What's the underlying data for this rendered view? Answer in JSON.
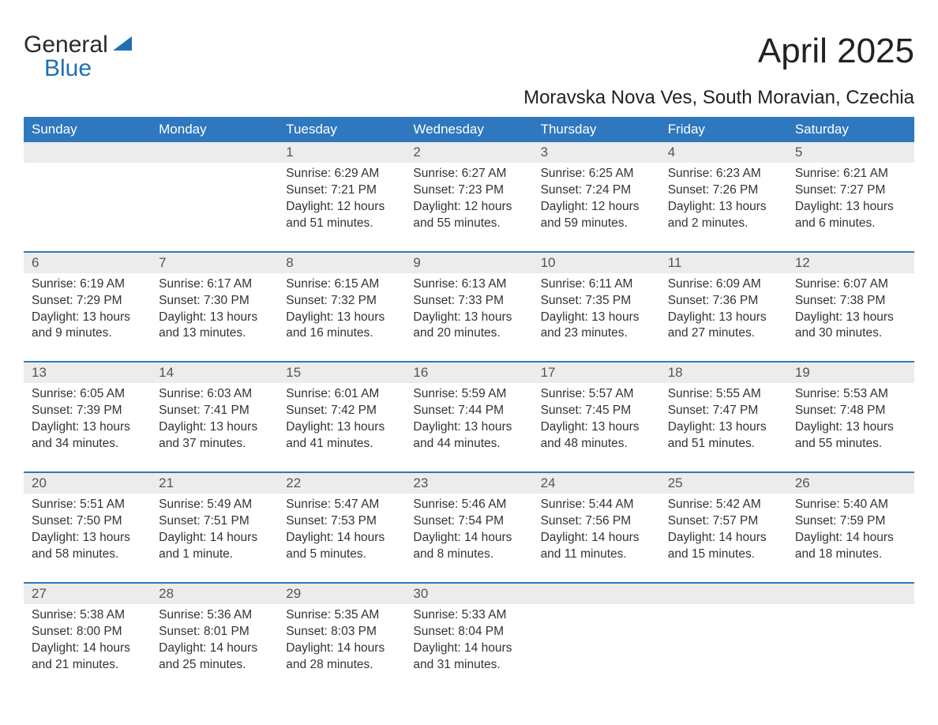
{
  "brand": {
    "word1": "General",
    "word2": "Blue",
    "logo_color": "#1f6fb2"
  },
  "title": "April 2025",
  "subtitle": "Moravska Nova Ves, South Moravian, Czechia",
  "colors": {
    "header_bg": "#2f78bf",
    "header_text": "#ffffff",
    "daynum_bg": "#ececec",
    "daynum_text": "#555555",
    "body_text": "#333333",
    "rule": "#2f78bf",
    "page_bg": "#ffffff"
  },
  "fontsize": {
    "title": 44,
    "subtitle": 24,
    "dayhead": 17,
    "daynum": 17,
    "body": 15.5
  },
  "dayheads": [
    "Sunday",
    "Monday",
    "Tuesday",
    "Wednesday",
    "Thursday",
    "Friday",
    "Saturday"
  ],
  "weeks": [
    [
      null,
      null,
      {
        "num": "1",
        "sunrise": "Sunrise: 6:29 AM",
        "sunset": "Sunset: 7:21 PM",
        "daylight1": "Daylight: 12 hours",
        "daylight2": "and 51 minutes."
      },
      {
        "num": "2",
        "sunrise": "Sunrise: 6:27 AM",
        "sunset": "Sunset: 7:23 PM",
        "daylight1": "Daylight: 12 hours",
        "daylight2": "and 55 minutes."
      },
      {
        "num": "3",
        "sunrise": "Sunrise: 6:25 AM",
        "sunset": "Sunset: 7:24 PM",
        "daylight1": "Daylight: 12 hours",
        "daylight2": "and 59 minutes."
      },
      {
        "num": "4",
        "sunrise": "Sunrise: 6:23 AM",
        "sunset": "Sunset: 7:26 PM",
        "daylight1": "Daylight: 13 hours",
        "daylight2": "and 2 minutes."
      },
      {
        "num": "5",
        "sunrise": "Sunrise: 6:21 AM",
        "sunset": "Sunset: 7:27 PM",
        "daylight1": "Daylight: 13 hours",
        "daylight2": "and 6 minutes."
      }
    ],
    [
      {
        "num": "6",
        "sunrise": "Sunrise: 6:19 AM",
        "sunset": "Sunset: 7:29 PM",
        "daylight1": "Daylight: 13 hours",
        "daylight2": "and 9 minutes."
      },
      {
        "num": "7",
        "sunrise": "Sunrise: 6:17 AM",
        "sunset": "Sunset: 7:30 PM",
        "daylight1": "Daylight: 13 hours",
        "daylight2": "and 13 minutes."
      },
      {
        "num": "8",
        "sunrise": "Sunrise: 6:15 AM",
        "sunset": "Sunset: 7:32 PM",
        "daylight1": "Daylight: 13 hours",
        "daylight2": "and 16 minutes."
      },
      {
        "num": "9",
        "sunrise": "Sunrise: 6:13 AM",
        "sunset": "Sunset: 7:33 PM",
        "daylight1": "Daylight: 13 hours",
        "daylight2": "and 20 minutes."
      },
      {
        "num": "10",
        "sunrise": "Sunrise: 6:11 AM",
        "sunset": "Sunset: 7:35 PM",
        "daylight1": "Daylight: 13 hours",
        "daylight2": "and 23 minutes."
      },
      {
        "num": "11",
        "sunrise": "Sunrise: 6:09 AM",
        "sunset": "Sunset: 7:36 PM",
        "daylight1": "Daylight: 13 hours",
        "daylight2": "and 27 minutes."
      },
      {
        "num": "12",
        "sunrise": "Sunrise: 6:07 AM",
        "sunset": "Sunset: 7:38 PM",
        "daylight1": "Daylight: 13 hours",
        "daylight2": "and 30 minutes."
      }
    ],
    [
      {
        "num": "13",
        "sunrise": "Sunrise: 6:05 AM",
        "sunset": "Sunset: 7:39 PM",
        "daylight1": "Daylight: 13 hours",
        "daylight2": "and 34 minutes."
      },
      {
        "num": "14",
        "sunrise": "Sunrise: 6:03 AM",
        "sunset": "Sunset: 7:41 PM",
        "daylight1": "Daylight: 13 hours",
        "daylight2": "and 37 minutes."
      },
      {
        "num": "15",
        "sunrise": "Sunrise: 6:01 AM",
        "sunset": "Sunset: 7:42 PM",
        "daylight1": "Daylight: 13 hours",
        "daylight2": "and 41 minutes."
      },
      {
        "num": "16",
        "sunrise": "Sunrise: 5:59 AM",
        "sunset": "Sunset: 7:44 PM",
        "daylight1": "Daylight: 13 hours",
        "daylight2": "and 44 minutes."
      },
      {
        "num": "17",
        "sunrise": "Sunrise: 5:57 AM",
        "sunset": "Sunset: 7:45 PM",
        "daylight1": "Daylight: 13 hours",
        "daylight2": "and 48 minutes."
      },
      {
        "num": "18",
        "sunrise": "Sunrise: 5:55 AM",
        "sunset": "Sunset: 7:47 PM",
        "daylight1": "Daylight: 13 hours",
        "daylight2": "and 51 minutes."
      },
      {
        "num": "19",
        "sunrise": "Sunrise: 5:53 AM",
        "sunset": "Sunset: 7:48 PM",
        "daylight1": "Daylight: 13 hours",
        "daylight2": "and 55 minutes."
      }
    ],
    [
      {
        "num": "20",
        "sunrise": "Sunrise: 5:51 AM",
        "sunset": "Sunset: 7:50 PM",
        "daylight1": "Daylight: 13 hours",
        "daylight2": "and 58 minutes."
      },
      {
        "num": "21",
        "sunrise": "Sunrise: 5:49 AM",
        "sunset": "Sunset: 7:51 PM",
        "daylight1": "Daylight: 14 hours",
        "daylight2": "and 1 minute."
      },
      {
        "num": "22",
        "sunrise": "Sunrise: 5:47 AM",
        "sunset": "Sunset: 7:53 PM",
        "daylight1": "Daylight: 14 hours",
        "daylight2": "and 5 minutes."
      },
      {
        "num": "23",
        "sunrise": "Sunrise: 5:46 AM",
        "sunset": "Sunset: 7:54 PM",
        "daylight1": "Daylight: 14 hours",
        "daylight2": "and 8 minutes."
      },
      {
        "num": "24",
        "sunrise": "Sunrise: 5:44 AM",
        "sunset": "Sunset: 7:56 PM",
        "daylight1": "Daylight: 14 hours",
        "daylight2": "and 11 minutes."
      },
      {
        "num": "25",
        "sunrise": "Sunrise: 5:42 AM",
        "sunset": "Sunset: 7:57 PM",
        "daylight1": "Daylight: 14 hours",
        "daylight2": "and 15 minutes."
      },
      {
        "num": "26",
        "sunrise": "Sunrise: 5:40 AM",
        "sunset": "Sunset: 7:59 PM",
        "daylight1": "Daylight: 14 hours",
        "daylight2": "and 18 minutes."
      }
    ],
    [
      {
        "num": "27",
        "sunrise": "Sunrise: 5:38 AM",
        "sunset": "Sunset: 8:00 PM",
        "daylight1": "Daylight: 14 hours",
        "daylight2": "and 21 minutes."
      },
      {
        "num": "28",
        "sunrise": "Sunrise: 5:36 AM",
        "sunset": "Sunset: 8:01 PM",
        "daylight1": "Daylight: 14 hours",
        "daylight2": "and 25 minutes."
      },
      {
        "num": "29",
        "sunrise": "Sunrise: 5:35 AM",
        "sunset": "Sunset: 8:03 PM",
        "daylight1": "Daylight: 14 hours",
        "daylight2": "and 28 minutes."
      },
      {
        "num": "30",
        "sunrise": "Sunrise: 5:33 AM",
        "sunset": "Sunset: 8:04 PM",
        "daylight1": "Daylight: 14 hours",
        "daylight2": "and 31 minutes."
      },
      null,
      null,
      null
    ]
  ]
}
